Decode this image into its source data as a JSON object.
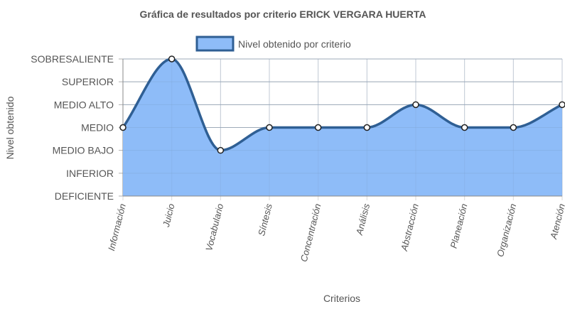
{
  "chart_data": {
    "type": "area",
    "title": "Gráfica de resultados por criterio ERICK VERGARA HUERTA",
    "xlabel": "Criterios",
    "ylabel": "Nivel obtenido",
    "legend_position": "top",
    "grid": true,
    "y_categories": [
      "DEFICIENTE",
      "INFERIOR",
      "MEDIO BAJO",
      "MEDIO",
      "MEDIO ALTO",
      "SUPERIOR",
      "SOBRESALIENTE"
    ],
    "ylim": [
      0,
      6
    ],
    "categories": [
      "Información",
      "Juicio",
      "Vocabulario",
      "Síntesis",
      "Concentración",
      "Análisis",
      "Abstracción",
      "Planeación",
      "Organización",
      "Atención"
    ],
    "series": [
      {
        "name": "Nivel obtenido por criterio",
        "values": [
          3,
          6,
          2,
          3,
          3,
          3,
          4,
          3,
          3,
          4
        ],
        "value_labels": [
          "MEDIO",
          "SOBRESALIENTE",
          "MEDIO BAJO",
          "MEDIO",
          "MEDIO",
          "MEDIO",
          "MEDIO ALTO",
          "MEDIO",
          "MEDIO",
          "MEDIO ALTO"
        ],
        "fill_color": "#8ebcf8",
        "line_color": "#2f5f94",
        "legend_fill": "#8ebcf8"
      }
    ],
    "colors": {
      "grid": "#d9d9d9",
      "grid_h": "#b0b0b0",
      "axis": "#888888",
      "text": "#555555"
    }
  }
}
